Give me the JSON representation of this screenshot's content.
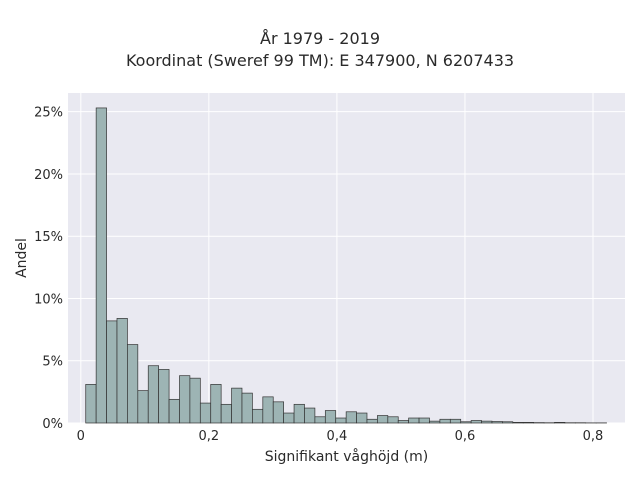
{
  "chart_data": {
    "type": "bar",
    "title": "År 1979 - 2019",
    "subtitle": "Koordinat (Sweref 99 TM): E 347900, N 6207433",
    "xlabel": "Signifikant våghöjd (m)",
    "ylabel": "Andel",
    "xlim": [
      -0.02,
      0.85
    ],
    "ylim": [
      0,
      26.5
    ],
    "x_ticks": [
      {
        "value": 0,
        "label": "0"
      },
      {
        "value": 0.2,
        "label": "0,2"
      },
      {
        "value": 0.4,
        "label": "0,4"
      },
      {
        "value": 0.6,
        "label": "0,6"
      },
      {
        "value": 0.8,
        "label": "0,8"
      }
    ],
    "y_ticks": [
      {
        "value": 0,
        "label": "0%"
      },
      {
        "value": 5,
        "label": "5%"
      },
      {
        "value": 10,
        "label": "10%"
      },
      {
        "value": 15,
        "label": "15%"
      },
      {
        "value": 20,
        "label": "20%"
      },
      {
        "value": 25,
        "label": "25%"
      }
    ],
    "grid": true,
    "bin_width": 0.01627,
    "bin_start": 0.0077,
    "values": [
      3.1,
      25.3,
      8.2,
      8.4,
      6.3,
      2.6,
      4.6,
      4.3,
      1.9,
      3.8,
      3.6,
      1.6,
      3.1,
      1.5,
      2.8,
      2.4,
      1.1,
      2.1,
      1.7,
      0.8,
      1.5,
      1.2,
      0.5,
      1.0,
      0.4,
      0.9,
      0.8,
      0.3,
      0.6,
      0.5,
      0.2,
      0.4,
      0.4,
      0.15,
      0.3,
      0.3,
      0.1,
      0.2,
      0.15,
      0.12,
      0.1,
      0.05,
      0.05,
      0.03,
      0.02,
      0.05,
      0.02,
      0.02,
      0.01,
      0.01
    ],
    "colors": {
      "bar_fill": "#9db4b4",
      "bar_edge": "#333333",
      "plot_bg": "#e9e9f1",
      "grid": "#ffffff"
    }
  }
}
